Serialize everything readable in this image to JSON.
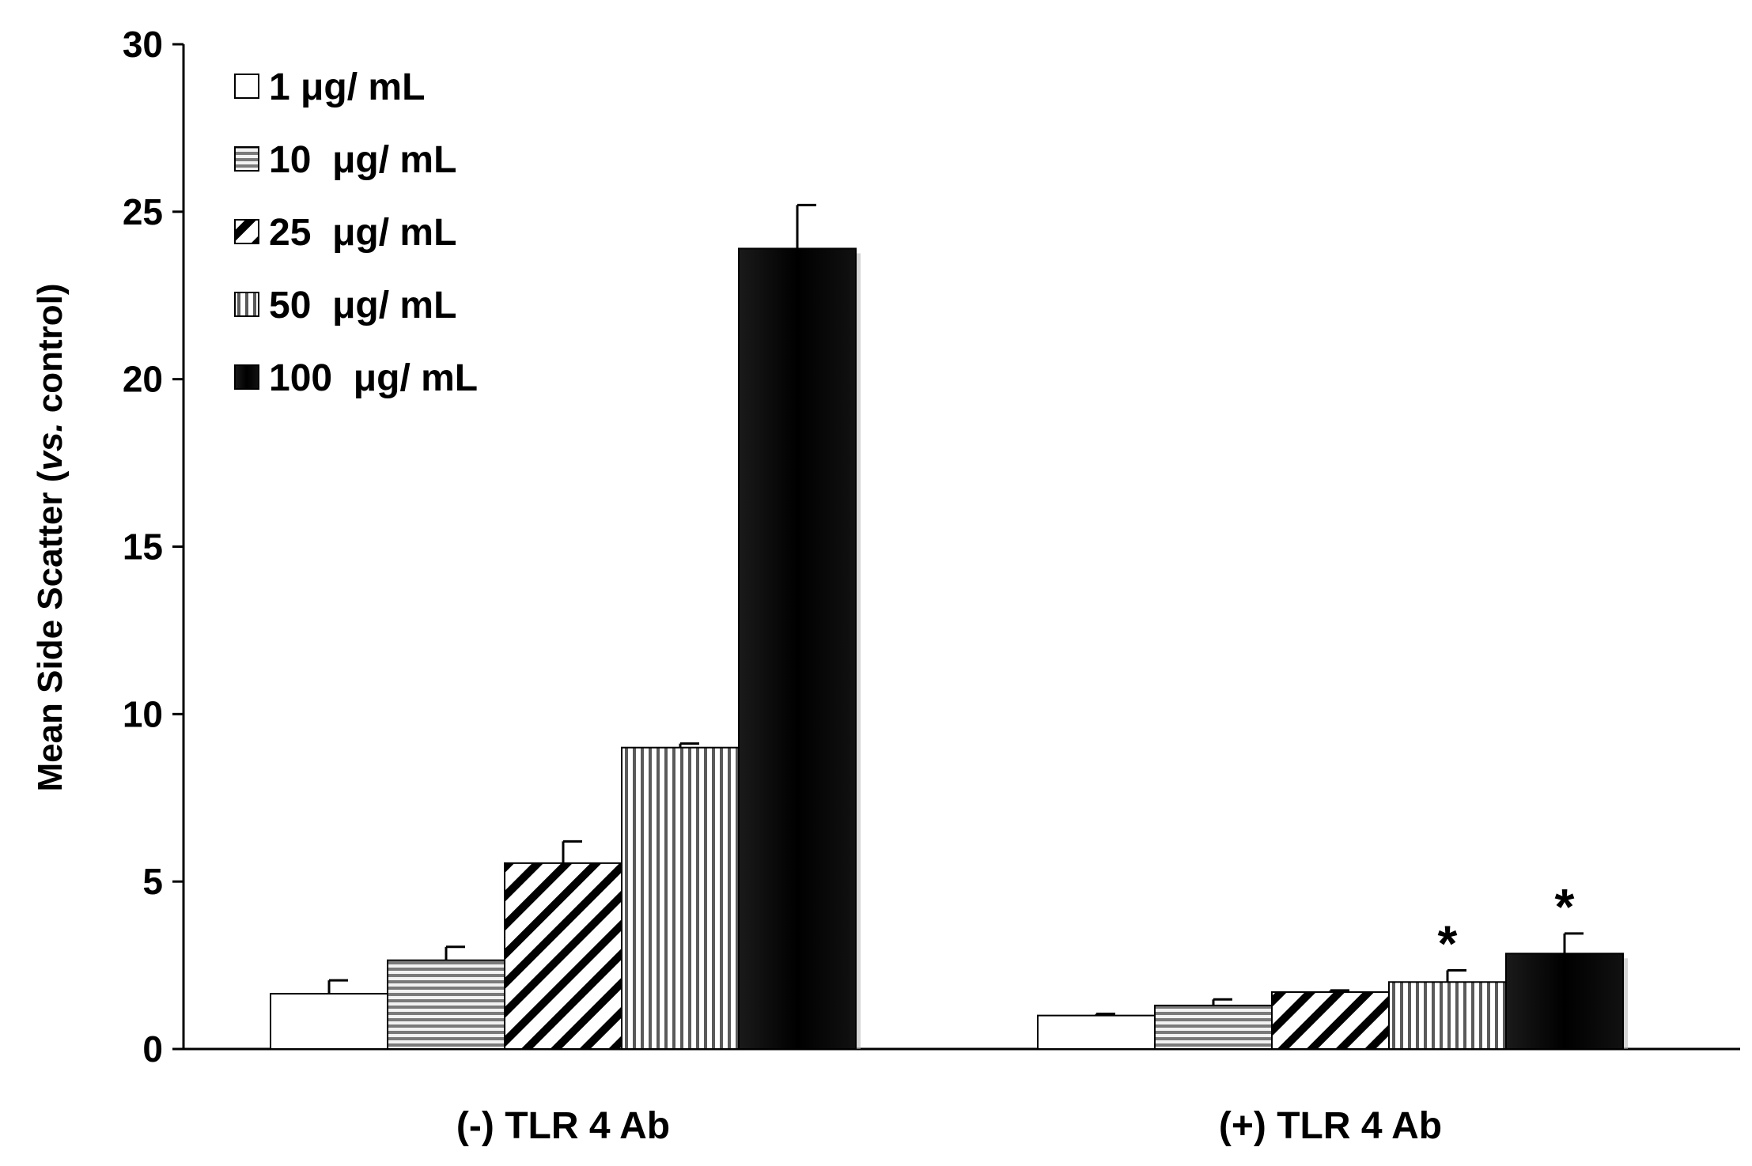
{
  "chart_data": {
    "type": "bar",
    "title": "",
    "xlabel": "",
    "ylabel": "Mean Side Scatter (vs. control)",
    "ylabel_parts": {
      "prefix": "Mean Side Scatter (",
      "italic": "vs.",
      "suffix": " control)"
    },
    "ylim": [
      0,
      30
    ],
    "yticks": [
      "0",
      "5",
      "10",
      "15",
      "20",
      "25",
      "30"
    ],
    "categories": [
      "(-) TLR 4 Ab",
      "(+) TLR 4 Ab"
    ],
    "series": [
      {
        "name": "1 μg/ mL",
        "values": [
          1.65,
          1.0
        ],
        "errors": [
          0.4,
          0.05
        ],
        "markers": [
          "",
          ""
        ],
        "pattern": "white",
        "fill": "#ffffff"
      },
      {
        "name": "10  μg/ mL",
        "values": [
          2.65,
          1.3
        ],
        "errors": [
          0.4,
          0.18
        ],
        "markers": [
          "",
          ""
        ],
        "pattern": "hlines",
        "fill": "#888888"
      },
      {
        "name": "25  μg/ mL",
        "values": [
          5.55,
          1.7
        ],
        "errors": [
          0.65,
          0.05
        ],
        "markers": [
          "",
          ""
        ],
        "pattern": "diagonal",
        "fill": "#ffffff"
      },
      {
        "name": "50  μg/ mL",
        "values": [
          9.0,
          2.0
        ],
        "errors": [
          0.12,
          0.35
        ],
        "markers": [
          "",
          "*"
        ],
        "pattern": "vlines",
        "fill": "#aaaaaa"
      },
      {
        "name": "100  μg/ mL",
        "values": [
          23.9,
          2.85
        ],
        "errors": [
          1.3,
          0.6
        ],
        "markers": [
          "",
          "*"
        ],
        "pattern": "black",
        "fill": "#000000"
      }
    ],
    "legend_position": "top-left",
    "grid": false
  }
}
